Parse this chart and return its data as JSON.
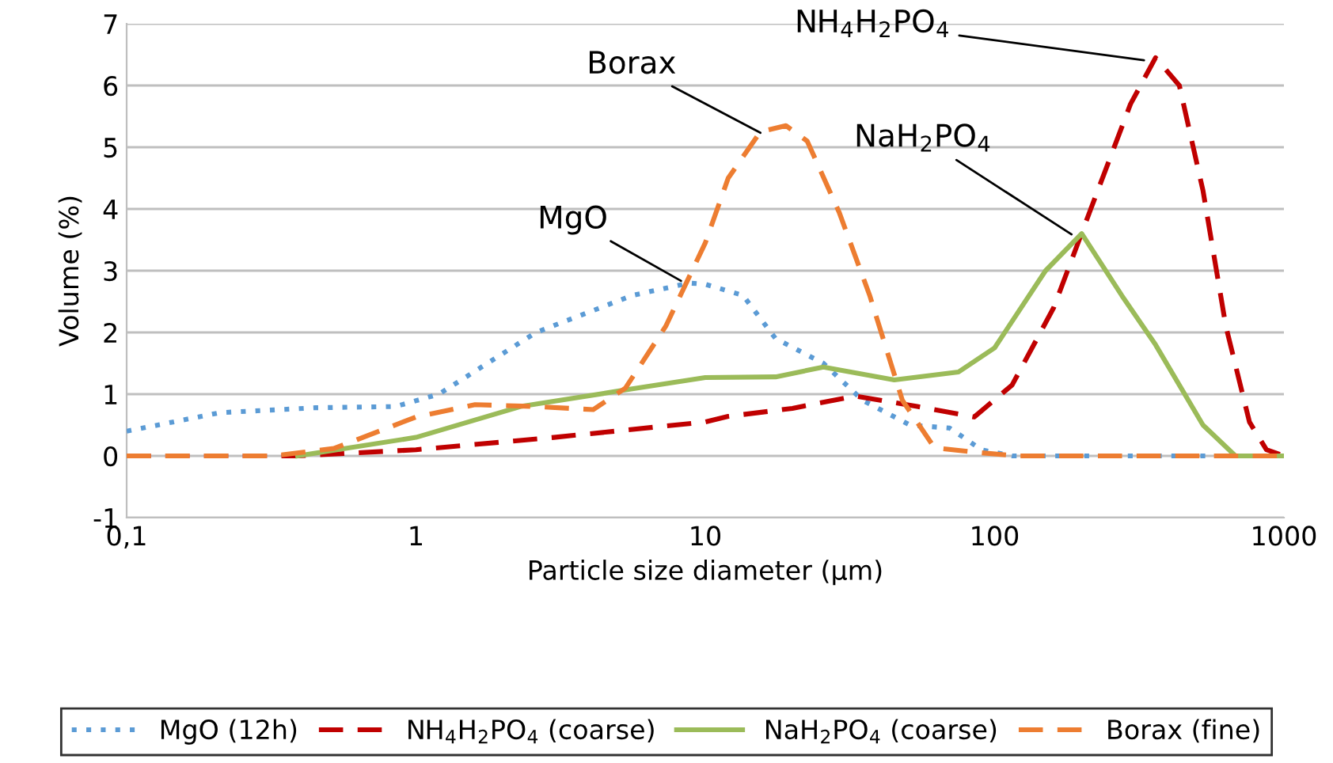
{
  "chart_data": {
    "type": "line",
    "xlabel": "Particle size diameter (µm)",
    "ylabel": "Volume (%)",
    "log": "x",
    "xlim": [
      0.1,
      1000
    ],
    "xticks": [
      {
        "value": 0.1,
        "label": "0,1"
      },
      1,
      10,
      100,
      1000
    ],
    "ylim": [
      -1,
      7
    ],
    "yticks": [
      -1,
      0,
      1,
      2,
      3,
      4,
      5,
      6,
      7
    ],
    "grid": "y",
    "legend": "bottom",
    "series": [
      {
        "name": "MgO (12h)",
        "color": "#5b9bd5",
        "line_style": "dotted",
        "x": [
          0.1,
          0.21,
          0.45,
          0.85,
          1.2,
          2.6,
          5.6,
          8.8,
          10,
          13.5,
          17.5,
          25.6,
          35,
          51,
          70,
          90,
          115,
          1000
        ],
        "values": [
          0.4,
          0.7,
          0.78,
          0.8,
          1.0,
          2.0,
          2.6,
          2.8,
          2.78,
          2.6,
          1.9,
          1.5,
          0.9,
          0.5,
          0.45,
          0.1,
          0,
          0
        ]
      },
      {
        "name": "NH$_{4}$H$_{2}$PO$_{4}$ (coarse)",
        "color": "#c00000",
        "line_style": "dashed",
        "x": [
          0.1,
          0.39,
          1,
          3,
          10,
          12,
          20,
          33,
          54,
          85,
          115,
          160,
          215,
          295,
          360,
          435,
          525,
          630,
          760,
          870,
          1000
        ],
        "values": [
          0,
          0,
          0.1,
          0.3,
          0.55,
          0.64,
          0.77,
          0.97,
          0.8,
          0.63,
          1.15,
          2.4,
          4.0,
          5.7,
          6.45,
          6.0,
          4.3,
          2.1,
          0.55,
          0.1,
          0
        ]
      },
      {
        "name": "NaH$_{2}$PO$_{4}$ (coarse)",
        "color": "#9bbb59",
        "line_style": "solid",
        "x": [
          0.39,
          1,
          2.3,
          5,
          10,
          17.5,
          25.6,
          45,
          75,
          100,
          150,
          200,
          275,
          360,
          525,
          680,
          1000
        ],
        "values": [
          0,
          0.3,
          0.8,
          1.05,
          1.27,
          1.28,
          1.44,
          1.23,
          1.36,
          1.75,
          3.0,
          3.6,
          2.6,
          1.8,
          0.5,
          0,
          0
        ]
      },
      {
        "name": "Borax (fine)",
        "color": "#ed7d31",
        "line_style": "dashed",
        "x": [
          0.1,
          0.32,
          0.52,
          1,
          1.6,
          2.6,
          4.1,
          5.3,
          7.3,
          10,
          12,
          15.5,
          19,
          22.5,
          29,
          37,
          48,
          62,
          90,
          120,
          1000
        ],
        "values": [
          0,
          0,
          0.12,
          0.63,
          0.83,
          0.8,
          0.75,
          1.1,
          2.1,
          3.45,
          4.5,
          5.25,
          5.35,
          5.1,
          3.95,
          2.6,
          0.9,
          0.13,
          0.05,
          0,
          0
        ]
      }
    ],
    "annotations": [
      {
        "text": "MgO",
        "x": 8.5,
        "y": 2.8
      },
      {
        "text": "Borax",
        "x": 16,
        "y": 5.2
      },
      {
        "text": "NaH$_{2}$PO$_{4}$",
        "x": 190,
        "y": 3.55
      },
      {
        "text": "NH$_{4}$H$_{2}$PO$_{4}$",
        "x": 340,
        "y": 6.4
      }
    ]
  }
}
